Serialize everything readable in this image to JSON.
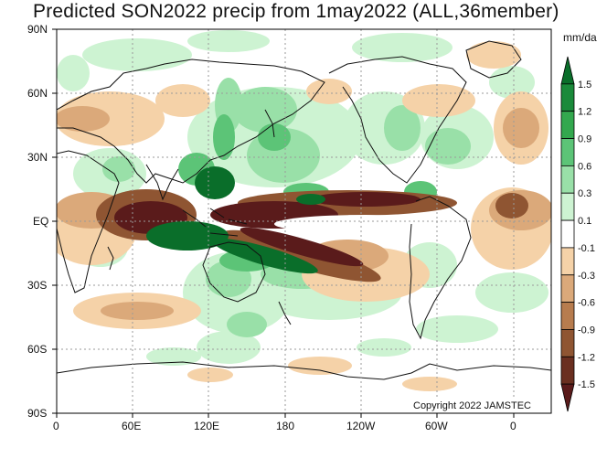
{
  "title": "Predicted SON2022 precip from 1may2022 (ALL,36member)",
  "units": "mm/da",
  "copyright": "Copyright 2022 JAMSTEC",
  "lat_ticks": [
    "90N",
    "60N",
    "30N",
    "EQ",
    "30S",
    "60S",
    "90S"
  ],
  "lon_ticks": [
    "0",
    "60E",
    "120E",
    "180",
    "120W",
    "60W",
    "0"
  ],
  "colorbar": {
    "labels": [
      "1.5",
      "1.2",
      "0.9",
      "0.6",
      "0.3",
      "0.1",
      "-0.1",
      "-0.3",
      "-0.6",
      "-0.9",
      "-1.2",
      "-1.5"
    ],
    "colors": [
      "#0a6e2a",
      "#1a8a3a",
      "#33a84e",
      "#5cc477",
      "#99e0a8",
      "#cdf3d2",
      "#ffffff",
      "#f5d2a8",
      "#dba97a",
      "#b77c4e",
      "#8f5532",
      "#6a2f20",
      "#5a1b1b"
    ]
  },
  "colors": {
    "coast": "#111111",
    "grid": "#9a9a9a",
    "frame": "#000000"
  }
}
